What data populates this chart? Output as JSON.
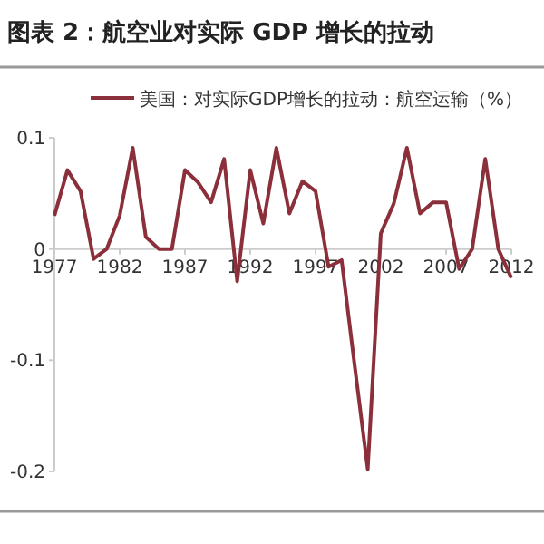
{
  "chart_data": {
    "type": "line",
    "title": "图表 2：航空业对实际 GDP 增长的拉动",
    "x": [
      1977,
      1978,
      1979,
      1980,
      1981,
      1982,
      1983,
      1984,
      1985,
      1986,
      1987,
      1988,
      1989,
      1990,
      1991,
      1992,
      1993,
      1994,
      1995,
      1996,
      1997,
      1998,
      1999,
      2000,
      2001,
      2002,
      2003,
      2004,
      2005,
      2006,
      2007,
      2008,
      2009,
      2010,
      2011,
      2012
    ],
    "series": [
      {
        "name": "美国：对实际GDP增长的拉动：航空运输（%）",
        "color": "#8b2f3a",
        "values": [
          0.03,
          0.071,
          0.052,
          -0.009,
          0.0,
          0.03,
          0.091,
          0.011,
          0.0,
          0.0,
          0.071,
          0.06,
          0.042,
          0.081,
          -0.029,
          0.071,
          0.023,
          0.091,
          0.032,
          0.061,
          0.052,
          -0.016,
          -0.01,
          -0.105,
          -0.198,
          0.014,
          0.041,
          0.091,
          0.032,
          0.042,
          0.042,
          -0.018,
          0.0,
          0.081,
          0.0,
          -0.026
        ]
      }
    ],
    "xlim": [
      1977,
      2012
    ],
    "ylim": [
      -0.2,
      0.1
    ],
    "xticks": [
      1977,
      1982,
      1987,
      1992,
      1997,
      2002,
      2007,
      2012
    ],
    "yticks": [
      0.1,
      0,
      -0.1,
      -0.2
    ],
    "legend": "top",
    "marker": "none",
    "line_style": "solid"
  }
}
